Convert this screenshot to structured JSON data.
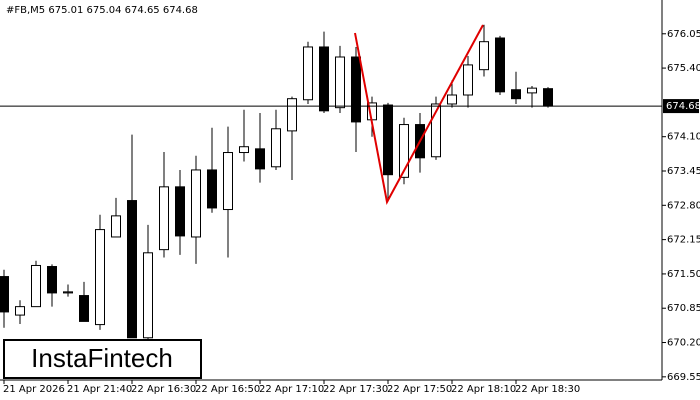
{
  "chart_data": {
    "type": "candlestick",
    "title": "#FB,M5  675.01 675.04 674.65 674.68",
    "watermark": "InstaFintech",
    "categories": [
      "21 Apr 2026",
      null,
      null,
      null,
      "21 Apr 21:40",
      null,
      null,
      null,
      "22 Apr 16:30",
      null,
      null,
      null,
      "22 Apr 16:50",
      null,
      null,
      null,
      "22 Apr 17:10",
      null,
      null,
      null,
      "22 Apr 17:30",
      null,
      null,
      null,
      "22 Apr 17:50",
      null,
      null,
      null,
      "22 Apr 18:10",
      null,
      null,
      null,
      "22 Apr 18:30",
      null,
      null
    ],
    "open": [
      671.45,
      670.72,
      670.88,
      671.64,
      671.14,
      671.09,
      670.54,
      672.2,
      672.89,
      670.29,
      671.96,
      673.15,
      672.2,
      673.47,
      672.72,
      673.8,
      673.87,
      673.53,
      674.21,
      674.8,
      675.8,
      674.65,
      675.61,
      674.42,
      674.7,
      673.33,
      674.33,
      673.72,
      674.72,
      674.89,
      675.37,
      675.97,
      674.99,
      674.93,
      675.01
    ],
    "high": [
      671.58,
      671.0,
      671.75,
      671.68,
      671.3,
      671.35,
      672.62,
      672.94,
      674.14,
      672.43,
      673.81,
      673.47,
      673.74,
      674.27,
      674.29,
      674.61,
      674.55,
      674.61,
      674.86,
      675.9,
      676.09,
      675.82,
      675.8,
      674.86,
      674.74,
      674.46,
      674.55,
      674.86,
      675.17,
      675.63,
      676.22,
      676.01,
      675.33,
      675.06,
      675.04
    ],
    "low": [
      670.48,
      670.55,
      670.88,
      670.88,
      671.07,
      670.6,
      670.44,
      672.2,
      670.29,
      670.16,
      671.81,
      671.86,
      671.69,
      672.66,
      671.81,
      673.63,
      673.23,
      673.47,
      673.28,
      674.72,
      674.55,
      674.55,
      673.81,
      674.1,
      672.87,
      673.2,
      673.42,
      673.66,
      674.65,
      674.65,
      675.24,
      674.89,
      674.72,
      674.65,
      674.65
    ],
    "close": [
      670.78,
      670.88,
      671.66,
      671.14,
      671.16,
      670.6,
      672.34,
      672.6,
      670.29,
      671.9,
      673.15,
      672.22,
      673.47,
      672.75,
      673.8,
      673.91,
      673.49,
      674.25,
      674.82,
      675.8,
      674.59,
      675.61,
      674.38,
      674.74,
      673.38,
      674.33,
      673.7,
      674.72,
      674.89,
      675.46,
      675.9,
      674.95,
      674.82,
      675.02,
      674.68
    ],
    "bull_color": "#ffffff",
    "bear_color": "#000000",
    "last_price": 674.68,
    "ylim": [
      669.49,
      676.69
    ],
    "yticks": [
      {
        "value": 676.05,
        "label": "676.05"
      },
      {
        "value": 675.4,
        "label": "675.40"
      },
      {
        "value": 674.1,
        "label": "674.10"
      },
      673.45,
      {
        "value": 672.8,
        "label": "672.80"
      },
      672.15,
      {
        "value": 671.5,
        "label": "671.50"
      },
      670.85,
      {
        "value": 670.2,
        "label": "670.20"
      },
      669.55
    ]
  }
}
